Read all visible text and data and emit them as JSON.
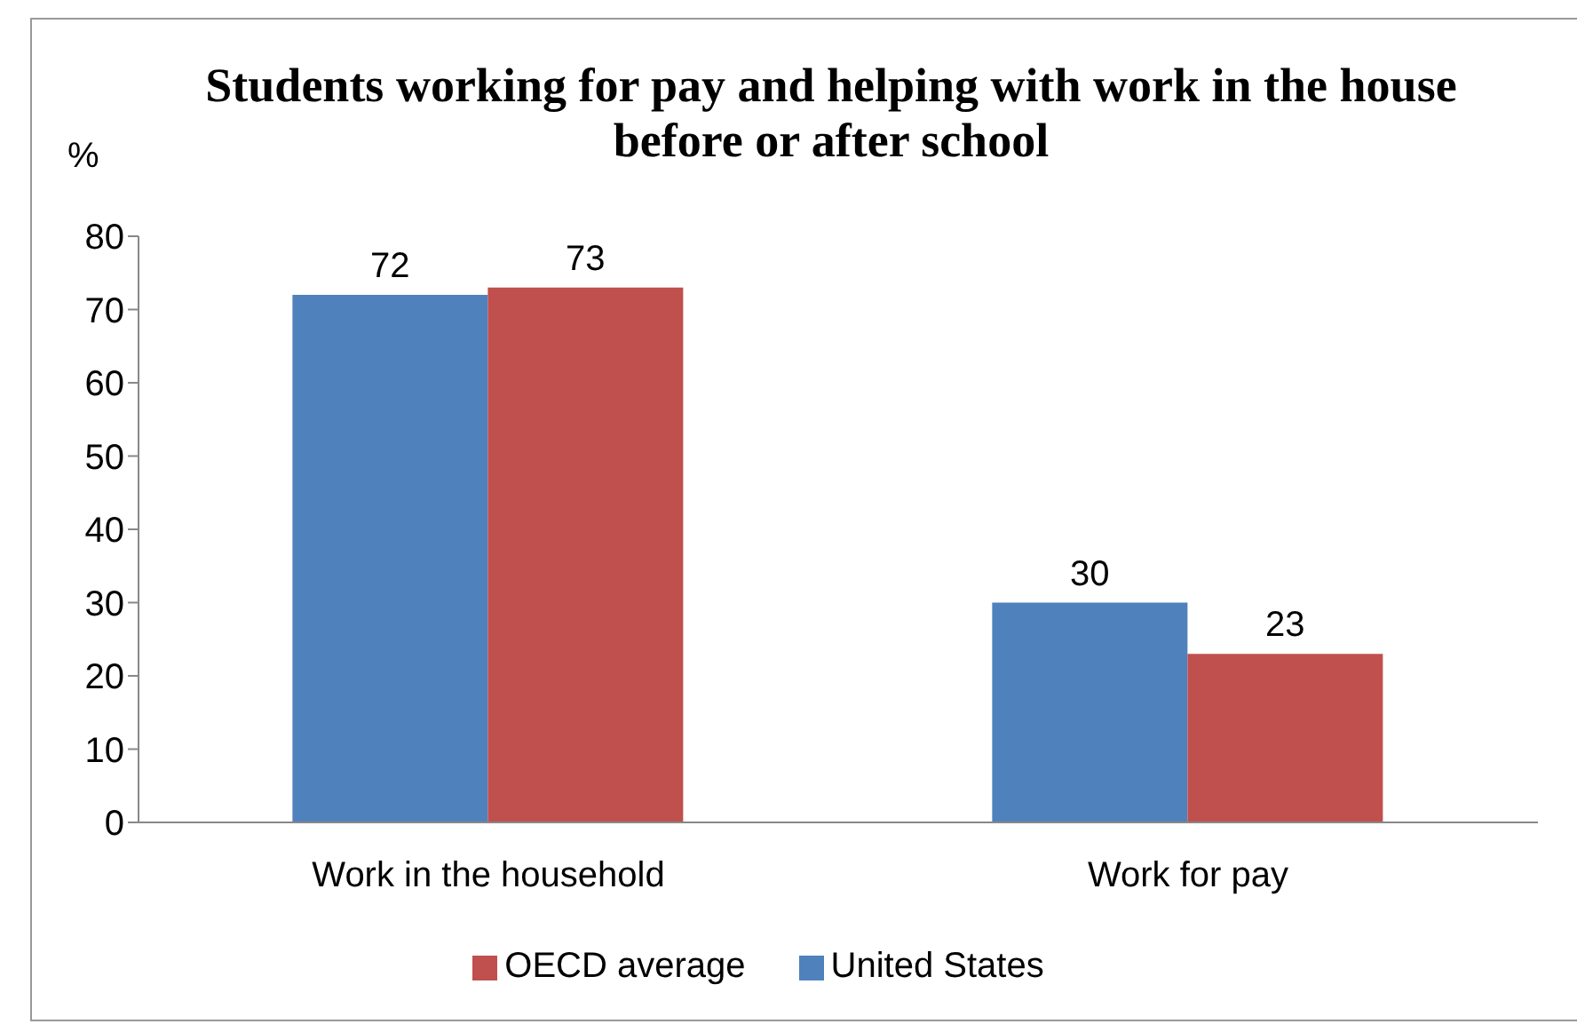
{
  "chart_data": {
    "type": "bar",
    "title": "Students working for pay and helping with work in the house before or after school",
    "ylabel": "%",
    "categories": [
      "Work in the household",
      "Work for pay"
    ],
    "series": [
      {
        "name": "United States",
        "color": "#4f81bd",
        "values": [
          72,
          30
        ]
      },
      {
        "name": "OECD average",
        "color": "#c0504d",
        "values": [
          73,
          23
        ]
      }
    ],
    "ylim": [
      0,
      80
    ],
    "yticks": [
      0,
      10,
      20,
      30,
      40,
      50,
      60,
      70,
      80
    ],
    "data_labels": true,
    "grid": false,
    "legend": "bottom"
  }
}
